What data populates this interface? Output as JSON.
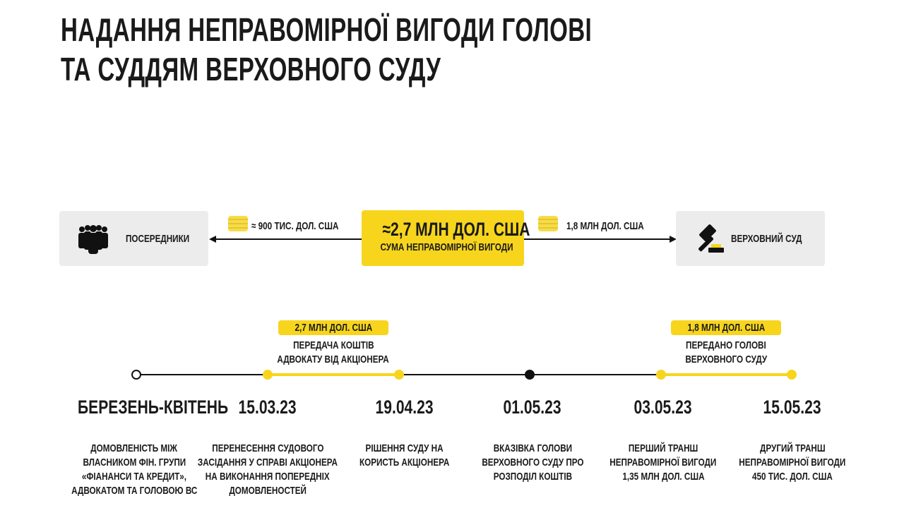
{
  "title": {
    "line1": "НАДАННЯ НЕПРАВОМІРНОЇ ВИГОДИ ГОЛОВІ",
    "line2": "ТА СУДДЯМ ВЕРХОВНОГО СУДУ"
  },
  "flow": {
    "left_box": {
      "label": "ПОСЕРЕДНИКИ",
      "icon": "people-group-icon"
    },
    "left_amount": "≈ 900 ТИС. ДОЛ. США",
    "center": {
      "amount": "≈2,7 МЛН ДОЛ. США",
      "caption": "СУМА НЕПРАВОМІРНОЇ ВИГОДИ"
    },
    "right_amount": "1,8 МЛН ДОЛ. США",
    "right_box": {
      "label": "ВЕРХОВНИЙ СУД",
      "icon": "gavel-icon"
    }
  },
  "colors": {
    "accent": "#f7d51d",
    "box": "#ececec",
    "text": "#1a1a1a"
  },
  "timeline": {
    "ranges": [
      {
        "amount": "2,7 МЛН ДОЛ. США",
        "line1": "ПЕРЕДАЧА КОШТІВ",
        "line2": "АДВОКАТУ ВІД АКЦІОНЕРА"
      },
      {
        "amount": "1,8 МЛН ДОЛ. США",
        "line1": "ПЕРЕДАНО ГОЛОВІ",
        "line2": "ВЕРХОВНОГО СУДУ"
      }
    ],
    "events": [
      {
        "date": "БЕРЕЗЕНЬ-КВІТЕНЬ",
        "desc": [
          "ДОМОВЛЕНІСТЬ МІЖ",
          "ВЛАСНИКОМ ФІН. ГРУПИ",
          "«ФІАНАНСИ ТА КРЕДИТ»,",
          "АДВОКАТОМ ТА ГОЛОВОЮ ВС"
        ]
      },
      {
        "date": "15.03.23",
        "desc": [
          "ПЕРЕНЕСЕННЯ СУДОВОГО",
          "ЗАСІДАННЯ У СПРАВІ АКЦІОНЕРА",
          "НА ВИКОНАННЯ ПОПЕРЕДНІХ",
          "ДОМОВЛЕНОСТЕЙ"
        ]
      },
      {
        "date": "19.04.23",
        "desc": [
          "РІШЕННЯ СУДУ НА",
          "КОРИСТЬ АКЦІОНЕРА"
        ]
      },
      {
        "date": "01.05.23",
        "desc": [
          "ВКАЗІВКА ГОЛОВИ",
          "ВЕРХОВНОГО СУДУ ПРО",
          "РОЗПОДІЛ КОШТІВ"
        ]
      },
      {
        "date": "03.05.23",
        "desc": [
          "ПЕРШИЙ ТРАНШ",
          "НЕПРАВОМІРНОЇ ВИГОДИ",
          "1,35 МЛН ДОЛ. США"
        ]
      },
      {
        "date": "15.05.23",
        "desc": [
          "ДРУГИЙ ТРАНШ",
          "НЕПРАВОМІРНОЇ ВИГОДИ",
          "450 ТИС. ДОЛ. США"
        ]
      }
    ]
  }
}
